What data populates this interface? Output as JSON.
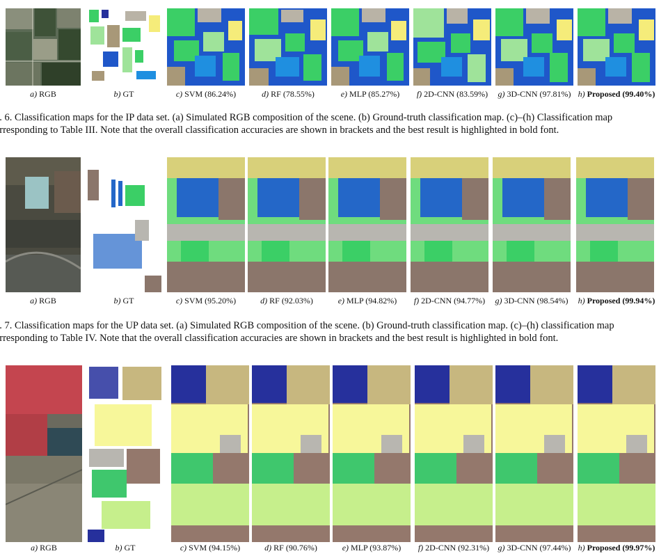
{
  "figures": [
    {
      "id": "fig6",
      "labels": [
        {
          "letter": "a)",
          "text": "RGB"
        },
        {
          "letter": "b)",
          "text": "GT"
        },
        {
          "letter": "c)",
          "text": "SVM (86.24%)"
        },
        {
          "letter": "d)",
          "text": "RF (78.55%)"
        },
        {
          "letter": "e)",
          "text": "MLP (85.27%)"
        },
        {
          "letter": "f)",
          "text": "2D-CNN (83.59%)"
        },
        {
          "letter": "g)",
          "text": "3D-CNN (97.81%)"
        },
        {
          "letter": "h)",
          "text": "Proposed (99.40%)"
        }
      ],
      "caption_line1": "g. 6.   Classification maps for the IP data set. (a) Simulated RGB composition of the scene. (b) Ground-truth classification map. (c)–(h) Classification map",
      "caption_line2": "orresponding to Table III. Note that the overall classification accuracies are shown in brackets and the best result is highlighted in bold font."
    },
    {
      "id": "fig7",
      "labels": [
        {
          "letter": "a)",
          "text": "RGB"
        },
        {
          "letter": "b)",
          "text": "GT"
        },
        {
          "letter": "c)",
          "text": "SVM (95.20%)"
        },
        {
          "letter": "d)",
          "text": "RF (92.03%)"
        },
        {
          "letter": "e)",
          "text": "MLP (94.82%)"
        },
        {
          "letter": "f)",
          "text": "2D-CNN (94.77%)"
        },
        {
          "letter": "g)",
          "text": "3D-CNN (98.54%)"
        },
        {
          "letter": "h)",
          "text": "Proposed (99.94%)"
        }
      ],
      "caption_line1": "g. 7.   Classification maps for the UP data set. (a) Simulated RGB composition of the scene. (b) Ground-truth classification map. (c)–(h) classification map",
      "caption_line2": "orresponding to Table IV. Note that the overall classification accuracies are shown in brackets and the best result is highlighted in bold font."
    },
    {
      "id": "fig8",
      "labels": [
        {
          "letter": "a)",
          "text": "RGB"
        },
        {
          "letter": "b)",
          "text": "GT"
        },
        {
          "letter": "c)",
          "text": "SVM (94.15%)"
        },
        {
          "letter": "d)",
          "text": "RF (90.76%)"
        },
        {
          "letter": "e)",
          "text": "MLP (93.87%)"
        },
        {
          "letter": "f)",
          "text": "2D-CNN (92.31%)"
        },
        {
          "letter": "g)",
          "text": "3D-CNN (97.44%)"
        },
        {
          "letter": "h)",
          "text": "Proposed (99.97%)"
        }
      ]
    }
  ],
  "colors": {
    "ip_background": "#1f57c9",
    "ip_green": "#3bcf66",
    "ip_lightgreen": "#9fe39a",
    "ip_tan": "#a89878",
    "ip_yellow": "#f5ec7a",
    "ip_gray": "#b9b3a6",
    "up_brown": "#8b766b",
    "up_green": "#6fdc7e",
    "up_blue": "#2467c8",
    "up_gray": "#b8b6b0",
    "up_yellow": "#d8d07a",
    "sa_brown": "#94786c",
    "sa_yellow": "#f7f79a",
    "sa_lightgreen": "#c6ef8c",
    "sa_green": "#3fc76d",
    "sa_navy": "#26309c",
    "sa_tan": "#c7b77f",
    "rgb_field_red": "#c4454f",
    "rgb_dark": "#3d4b3a"
  }
}
